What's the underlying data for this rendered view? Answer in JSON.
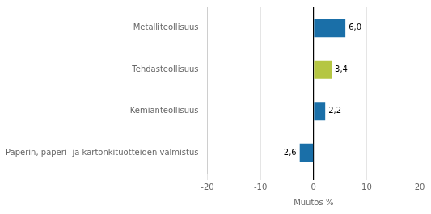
{
  "chart_data": {
    "type": "bar",
    "orientation": "horizontal",
    "categories": [
      "Paperin, paperi- ja kartonkituotteiden valmistus",
      "Kemianteollisuus",
      "Tehdasteollisuus",
      "Metalliteollisuus"
    ],
    "values": [
      -2.6,
      2.2,
      3.4,
      6.0
    ],
    "value_labels": [
      "-2,6",
      "2,2",
      "3,4",
      "6,0"
    ],
    "colors": [
      "#1a6fa8",
      "#1a6fa8",
      "#b5c642",
      "#1a6fa8"
    ],
    "xlabel": "Muutos %",
    "xlim": [
      -20,
      20
    ],
    "xticks": [
      -20,
      -10,
      0,
      10,
      20
    ],
    "grid": true,
    "data_labels": true
  }
}
